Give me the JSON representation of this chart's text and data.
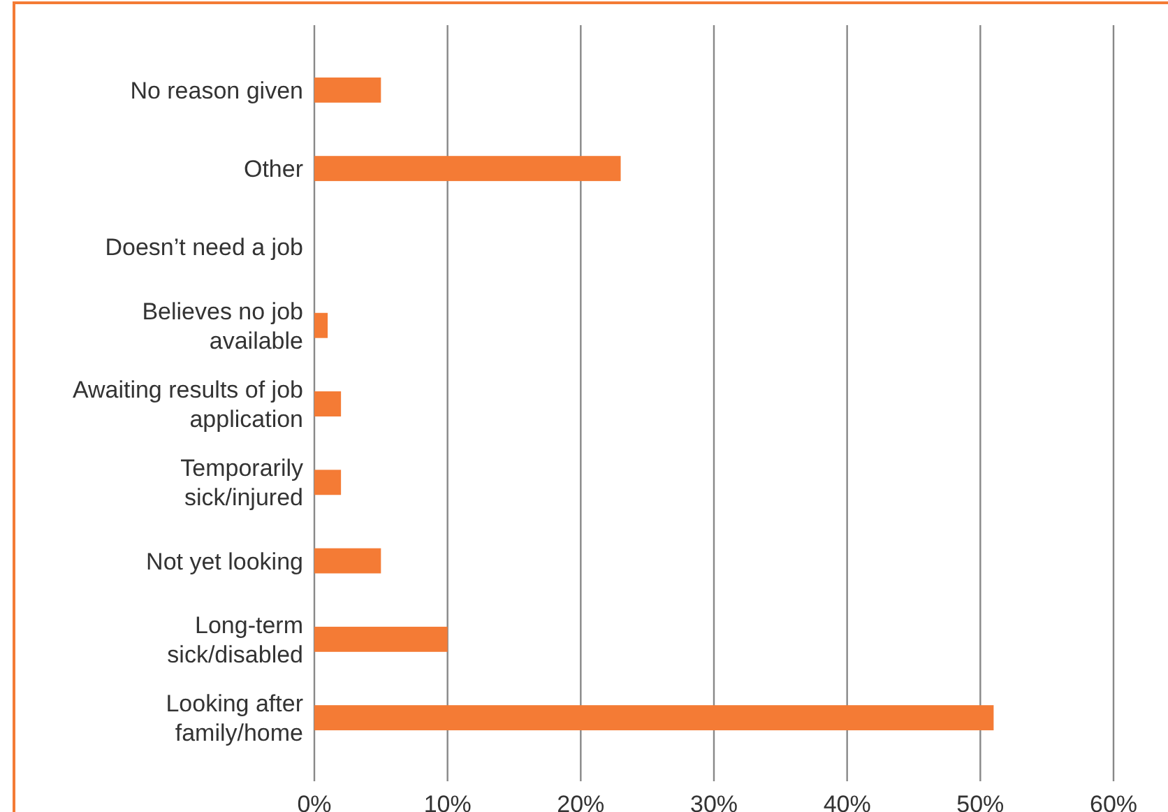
{
  "chart_data": {
    "type": "bar",
    "orientation": "horizontal",
    "categories": [
      "No reason given",
      "Other",
      "Doesn’t need a job",
      "Believes no job available",
      "Awaiting results of job application",
      "Temporarily sick/injured",
      "Not yet looking",
      "Long-term sick/disabled",
      "Looking after family/home"
    ],
    "values": [
      5,
      23,
      0,
      1,
      2,
      2,
      5,
      10,
      51
    ],
    "color": "#f47b35",
    "xlim": [
      0,
      60
    ],
    "xticks": [
      {
        "value": 0,
        "label": "0%"
      },
      {
        "value": 10,
        "label": "10%"
      },
      {
        "value": 20,
        "label": "20%"
      },
      {
        "value": 30,
        "label": "30%"
      },
      {
        "value": 40,
        "label": "40%"
      },
      {
        "value": 50,
        "label": "50%"
      },
      {
        "value": 60,
        "label": "60%"
      }
    ],
    "grid": "x"
  }
}
